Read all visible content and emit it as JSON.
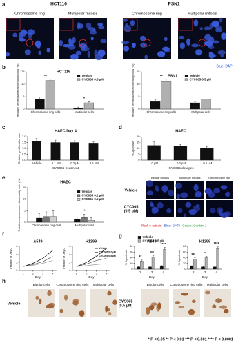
{
  "figure": {
    "letters": [
      "a",
      "b",
      "c",
      "d",
      "e",
      "f",
      "g",
      "h"
    ],
    "a": {
      "cell_lines": [
        "HCT116",
        "PSN1"
      ],
      "headings": [
        "Chromosome ring",
        "Multipolar mitosis",
        "Chromosome ring",
        "Multipolar mitosis"
      ],
      "stain": "Blue: DAPI"
    },
    "e_images": {
      "columns": [
        "Bipolar mitosis",
        "Multipolar mitosis",
        "Chromosome ring"
      ],
      "rows": [
        [
          "Vehicle"
        ],
        [
          "CYC065",
          "(0.5 µM)"
        ]
      ],
      "stain": [
        {
          "text": "Red: γ-tubulin",
          "color": "#e01010"
        },
        {
          "text": "Blue: DAPI",
          "color": "#1f4fd0"
        },
        {
          "text": "Green: Centrin 1",
          "color": "#1f9a2a"
        }
      ]
    },
    "h": [
      {
        "row": [
          "Vehicle"
        ],
        "columns": [
          "Bipolar cells",
          "Chromosome ring cells",
          "Multipolar cells"
        ]
      },
      {
        "row": [
          "CYC065",
          "(0.5 µM)"
        ],
        "columns": [
          "Bipolar cells",
          "Chromosome ring cells",
          "Multipolar cells"
        ]
      }
    ],
    "footnote": "* P < 0.05 ** P < 0.01 *** P < 0.001 **** P < 0.0001"
  },
  "chart_data": [
    {
      "type": "bar",
      "title": "HCT116",
      "ylabel": "Relative chromosome abnormality cells (%)",
      "categories": [
        "Chromosome ring cells",
        "Multipolar cells"
      ],
      "series": [
        {
          "name": "Vehicle",
          "color": "#111111",
          "values": [
            4,
            0.5
          ],
          "errors": [
            0.8,
            0.3
          ]
        },
        {
          "name": "CYC065 0.5 µM",
          "color": "#b0b0b0",
          "values": [
            11.5,
            2.5
          ],
          "errors": [
            0.6,
            0.5
          ]
        }
      ],
      "ylim": [
        0,
        15
      ],
      "yticks": [
        0,
        5,
        10,
        15
      ],
      "legend": true,
      "annotations": [
        "**",
        "*"
      ]
    },
    {
      "type": "bar",
      "title": "PSN1",
      "ylabel": "Relative chromosome abnormality cells (%)",
      "categories": [
        "Chromosome ring cells",
        "Multipolar cells"
      ],
      "series": [
        {
          "name": "Vehicle",
          "color": "#111111",
          "values": [
            3,
            2.5
          ],
          "errors": [
            0.7,
            0.5
          ]
        },
        {
          "name": "CYC065 0.5 µM",
          "color": "#b0b0b0",
          "values": [
            11,
            4
          ],
          "errors": [
            1,
            0.8
          ]
        }
      ],
      "ylim": [
        0,
        15
      ],
      "yticks": [
        0,
        5,
        10,
        15
      ],
      "legend": true,
      "annotations": [
        "**"
      ]
    },
    {
      "type": "bar",
      "title": "HAEC Day 4",
      "ylabel": "Relative proliferation rate",
      "xlabel": "CYC065 treatment",
      "categories": [
        "Vehicle",
        "0.1 µM",
        "0.2 µM",
        "0.5 µM"
      ],
      "color": "#111111",
      "values": [
        1.6,
        1.5,
        1.5,
        1.45
      ],
      "errors": [
        0.25,
        0.2,
        0.15,
        0.1
      ],
      "ylim": [
        0,
        2
      ],
      "yticks": [
        {
          "value": 0,
          "label": "0.0"
        },
        0.5,
        {
          "value": 1,
          "label": "1.0"
        },
        1.5,
        {
          "value": 2,
          "label": "2.0"
        }
      ]
    },
    {
      "type": "bar",
      "title": "HAEC",
      "ylabel": "% Apoptosis",
      "xlabel": "CYC065 dosages",
      "categories": [
        "0 µM",
        "0.2 µM",
        "0.5 µM"
      ],
      "color": "#111111",
      "values": [
        12.5,
        11.8,
        10.5
      ],
      "errors": [
        3,
        1.5,
        1.2
      ],
      "ylim": [
        0,
        20
      ],
      "yticks": [
        0,
        5,
        10,
        15,
        20
      ]
    },
    {
      "type": "bar",
      "title": "HAEC",
      "ylabel": "Relative chromosome abnormality cells (%)",
      "categories": [
        "Chromosome ring cells",
        "Multipolar cells"
      ],
      "series": [
        {
          "name": "Vehicle",
          "color": "#111111",
          "values": [
            1.8,
            1.2
          ],
          "errors": [
            2,
            1
          ]
        },
        {
          "name": "CYC065 0.2 µM",
          "color": "#777777",
          "values": [
            2.5,
            2
          ],
          "errors": [
            2,
            1.5
          ]
        },
        {
          "name": "CYC065 0.5 µM",
          "color": "#d0d0d0",
          "values": [
            2.5,
            0.8
          ],
          "errors": [
            2.5,
            1.2
          ]
        }
      ],
      "ylim": [
        0,
        15
      ],
      "yticks": [
        0,
        5,
        10,
        15
      ],
      "legend": true,
      "annotations": [
        "*"
      ]
    },
    {
      "type": "line",
      "title": "A549",
      "ylabel": "Fraction of Day 0",
      "xlabel": "Day",
      "x": [
        1,
        2,
        3,
        4
      ],
      "xlim": [
        0.6,
        4.4
      ],
      "xticks": [
        1,
        2,
        3,
        4
      ],
      "ylim": [
        0,
        6
      ],
      "yticks": [
        0,
        2,
        4,
        6
      ],
      "series": [
        {
          "color": "#000000",
          "values": [
            1,
            1.8,
            3,
            5
          ]
        },
        {
          "color": "#555555",
          "values": [
            1,
            1.5,
            2.2,
            3.5
          ]
        },
        {
          "color": "#999999",
          "values": [
            1,
            1.3,
            1.8,
            2.5
          ]
        }
      ]
    },
    {
      "type": "line",
      "title": "H1299",
      "ylabel": "Fraction of Day 0",
      "xlabel": "Day",
      "x": [
        1,
        2,
        3,
        4
      ],
      "xlim": [
        0.6,
        4.4
      ],
      "xticks": [
        1,
        2,
        3,
        4
      ],
      "ylim": [
        0,
        6
      ],
      "yticks": [
        0,
        2,
        4,
        6
      ],
      "series": [
        {
          "name": "Vehicle",
          "color": "#000000",
          "values": [
            1,
            2,
            3.5,
            5.5
          ]
        },
        {
          "name": "CYC065 0.2 µM",
          "color": "#555555",
          "values": [
            1,
            1.6,
            2.5,
            3
          ]
        },
        {
          "name": "CYC065 0.5 µM",
          "color": "#999999",
          "values": [
            1,
            1.2,
            1.5,
            1.7
          ]
        }
      ],
      "legend": true
    },
    {
      "type": "bar",
      "title": "A549",
      "ylabel": "% Apoptosis",
      "xlabel": "Day",
      "categories": [
        "2",
        "3",
        "4"
      ],
      "series": [
        {
          "name": "Vehicle",
          "color": "#111111",
          "values": [
            8,
            8,
            10
          ],
          "errors": [
            2,
            2,
            3
          ]
        },
        {
          "name": "CYC065 0.5 µM",
          "color": "#b0b0b0",
          "values": [
            28,
            42,
            70
          ],
          "errors": [
            4,
            5,
            6
          ]
        }
      ],
      "ylim": [
        0,
        80
      ],
      "yticks": [
        0,
        20,
        40,
        60,
        80
      ],
      "legend": true,
      "annotations": [
        "**",
        "***",
        "****"
      ]
    },
    {
      "type": "bar",
      "title": "H1299",
      "ylabel": "% Apoptosis",
      "xlabel": "Day",
      "categories": [
        "2",
        "3",
        "4"
      ],
      "series": [
        {
          "color": "#111111",
          "values": [
            10,
            8,
            8
          ],
          "errors": [
            2,
            2,
            2
          ]
        },
        {
          "color": "#b0b0b0",
          "values": [
            35,
            40,
            72
          ],
          "errors": [
            5,
            5,
            6
          ]
        }
      ],
      "ylim": [
        0,
        80
      ],
      "yticks": [
        0,
        20,
        40,
        60,
        80
      ],
      "annotations": [
        "***",
        "**",
        "****"
      ]
    }
  ]
}
